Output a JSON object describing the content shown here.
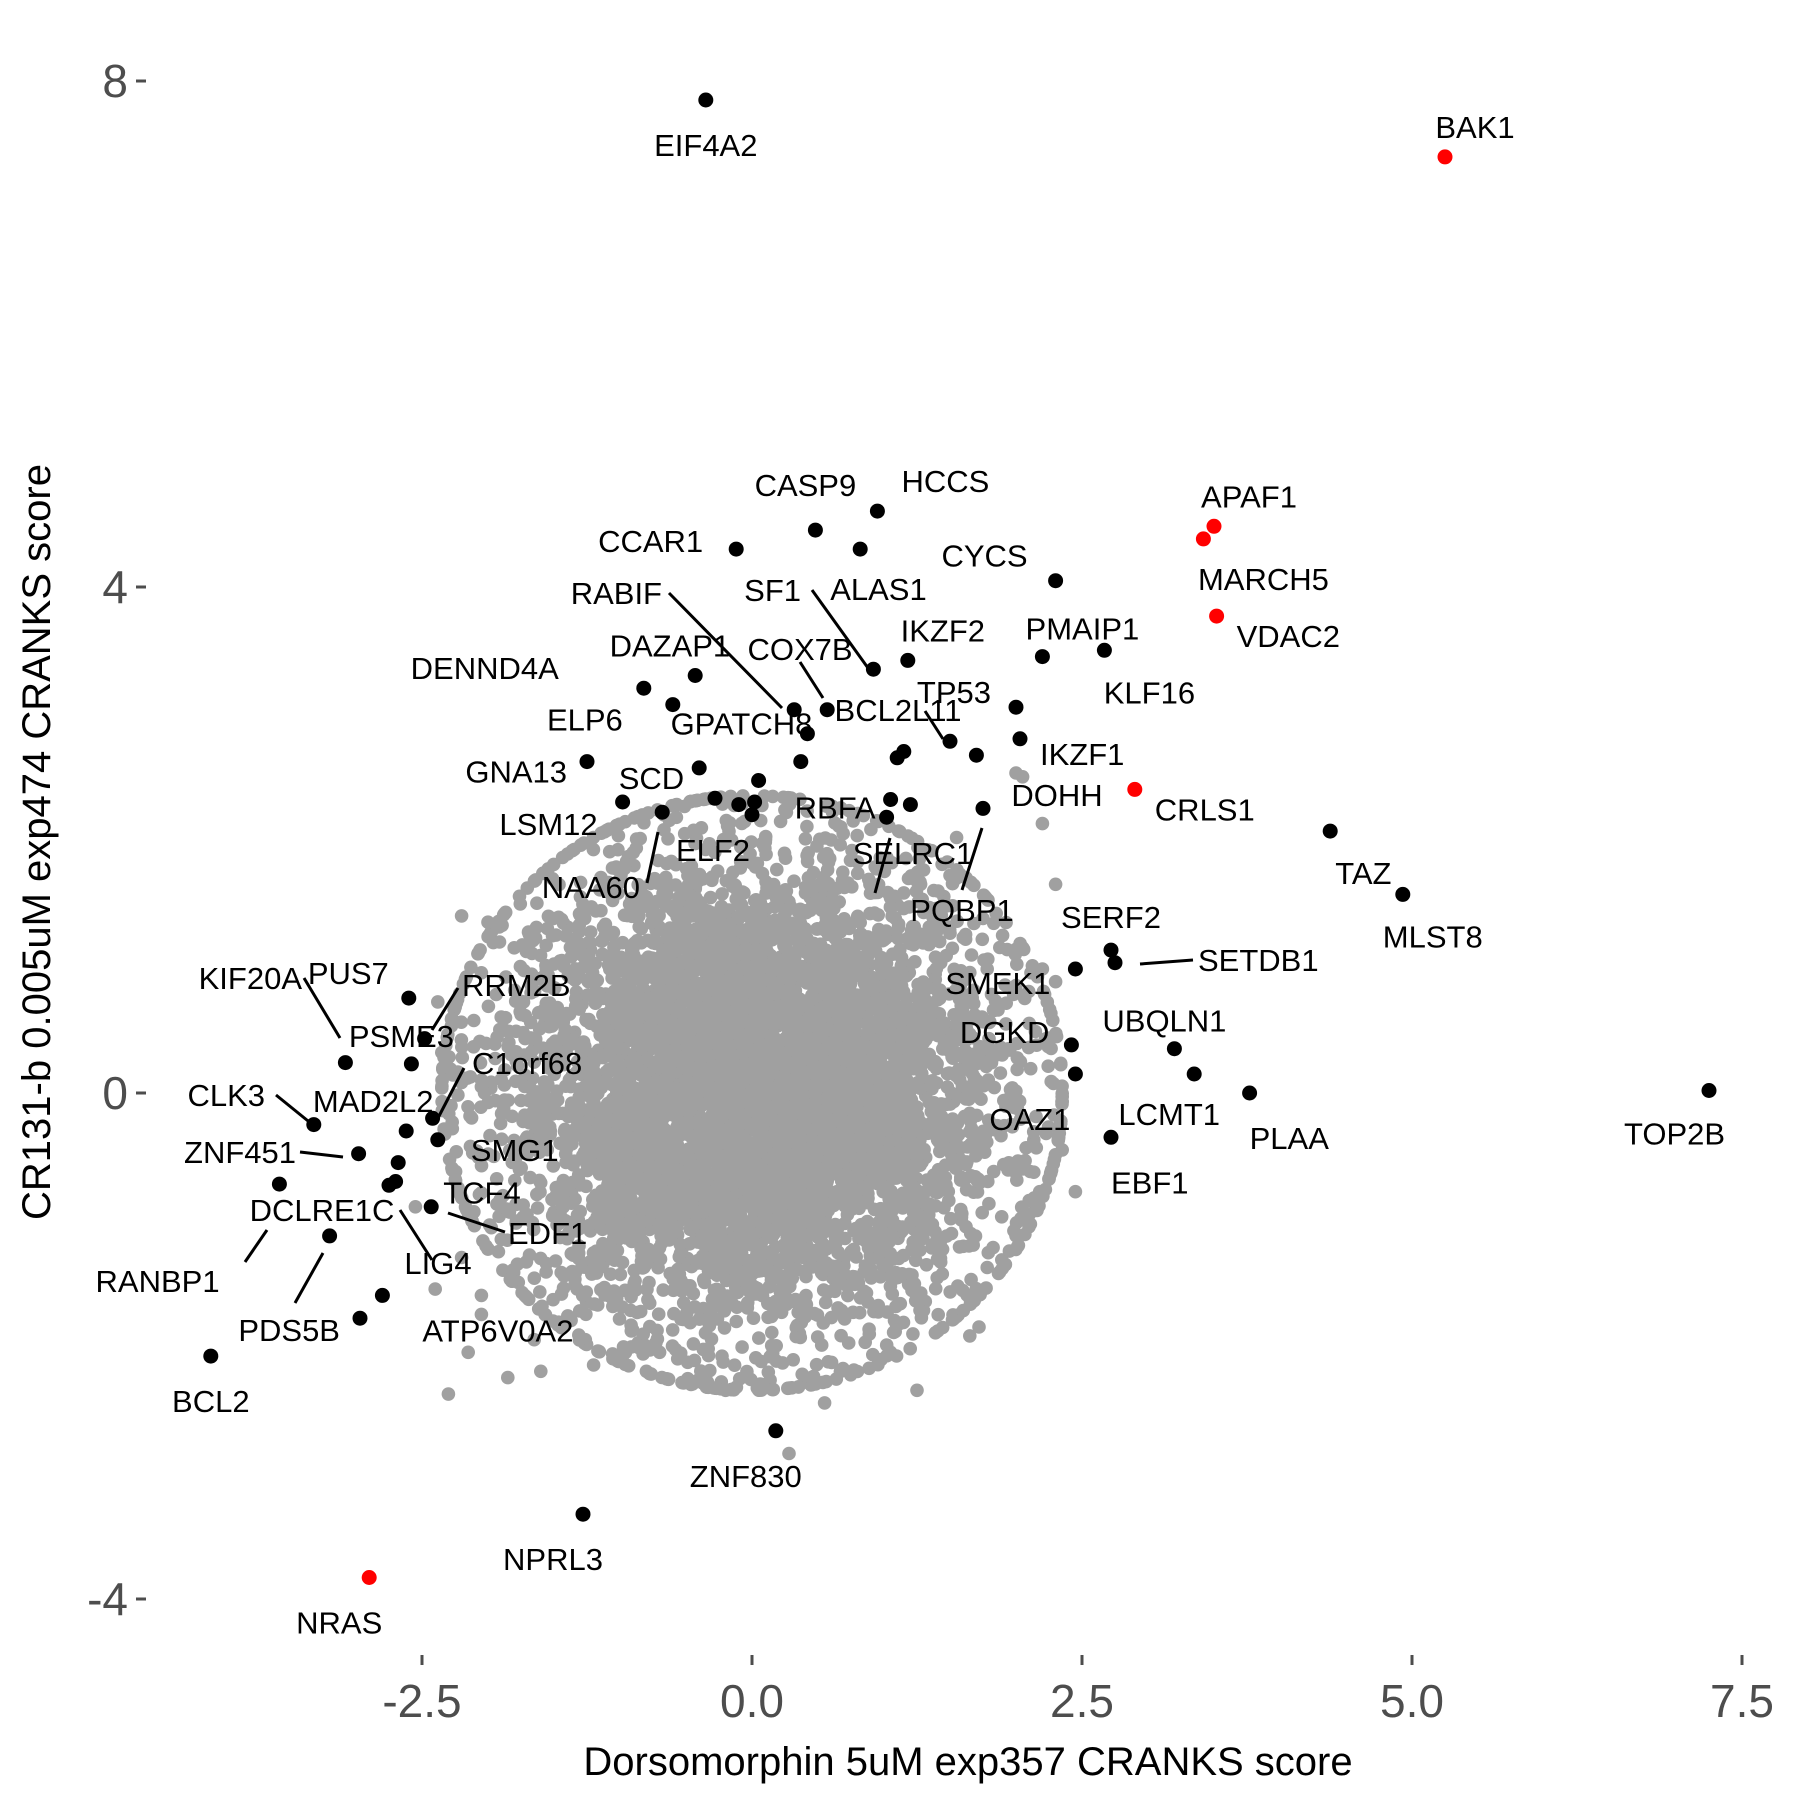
{
  "chart_data": {
    "type": "scatter",
    "title": "",
    "xlabel": "Dorsomorphin 5uM exp357 CRANKS score",
    "ylabel": "CR131-b 0.005uM exp474 CRANKS score",
    "xlim": [
      -4.6,
      7.55
    ],
    "ylim": [
      -4.45,
      8.3
    ],
    "xticks": [
      -2.5,
      0.0,
      2.5,
      5.0,
      7.5
    ],
    "xtick_labels": [
      "-2.5",
      "0.0",
      "2.5",
      "5.0",
      "7.5"
    ],
    "yticks": [
      -4,
      0,
      4,
      8
    ],
    "ytick_labels": [
      "-4",
      "0",
      "4",
      "8"
    ],
    "grid": false,
    "legend": "none",
    "colors": {
      "background": "#ffffff",
      "cloud": "#a0a0a0",
      "labeled": "#000000",
      "highlight": "#ff0000"
    },
    "background_cloud": {
      "description_of_distribution": "dense gray cloud of genes centred near origin",
      "center": [
        0.0,
        0.0
      ],
      "spread": [
        0.95,
        0.95
      ],
      "count": 6000
    },
    "labeled_points": [
      {
        "gene": "EIF4A2",
        "x": -0.35,
        "y": 7.85,
        "color": "black"
      },
      {
        "gene": "BAK1",
        "x": 5.25,
        "y": 7.4,
        "color": "red"
      },
      {
        "gene": "HCCS",
        "x": 0.95,
        "y": 4.6,
        "color": "black"
      },
      {
        "gene": "CASP9",
        "x": 0.48,
        "y": 4.45,
        "color": "black"
      },
      {
        "gene": "CCAR1",
        "x": -0.12,
        "y": 4.3,
        "color": "black"
      },
      {
        "gene": "ALAS1",
        "x": 0.82,
        "y": 4.3,
        "color": "black"
      },
      {
        "gene": "APAF1",
        "x": 3.5,
        "y": 4.48,
        "color": "red"
      },
      {
        "gene": "MARCH5",
        "x": 3.42,
        "y": 4.38,
        "color": "red"
      },
      {
        "gene": "CYCS",
        "x": 2.3,
        "y": 4.05,
        "color": "black"
      },
      {
        "gene": "VDAC2",
        "x": 3.52,
        "y": 3.77,
        "color": "red"
      },
      {
        "gene": "PMAIP1",
        "x": 2.2,
        "y": 3.45,
        "color": "black"
      },
      {
        "gene": "KLF16",
        "x": 2.67,
        "y": 3.5,
        "color": "black"
      },
      {
        "gene": "IKZF2",
        "x": 1.18,
        "y": 3.42,
        "color": "black"
      },
      {
        "gene": "SF1",
        "x": 0.92,
        "y": 3.35,
        "color": "black"
      },
      {
        "gene": "DAZAP1",
        "x": -0.43,
        "y": 3.3,
        "color": "black"
      },
      {
        "gene": "DENND4A",
        "x": -0.82,
        "y": 3.2,
        "color": "black"
      },
      {
        "gene": "ELP6",
        "x": -0.6,
        "y": 3.07,
        "color": "black"
      },
      {
        "gene": "RABIF",
        "x": 0.32,
        "y": 3.03,
        "color": "black"
      },
      {
        "gene": "COX7B",
        "x": 0.57,
        "y": 3.03,
        "color": "black"
      },
      {
        "gene": "TP53",
        "x": 2.0,
        "y": 3.05,
        "color": "black"
      },
      {
        "gene": "GPATCH8",
        "x": 0.42,
        "y": 2.84,
        "color": "black"
      },
      {
        "gene": "IKZF1",
        "x": 2.03,
        "y": 2.8,
        "color": "black"
      },
      {
        "gene": "BCL2L11",
        "x": 1.5,
        "y": 2.78,
        "color": "black"
      },
      {
        "gene": "BCL2L11_2",
        "x": 1.15,
        "y": 2.7,
        "color": "black"
      },
      {
        "gene": "BCL2L11_3",
        "x": 1.1,
        "y": 2.65,
        "color": "black"
      },
      {
        "gene": "DOHH",
        "x": 1.7,
        "y": 2.67,
        "color": "black"
      },
      {
        "gene": "GNA13",
        "x": -1.25,
        "y": 2.62,
        "color": "black"
      },
      {
        "gene": "SCD",
        "x": -0.4,
        "y": 2.57,
        "color": "black"
      },
      {
        "gene": "GPATCH8_2",
        "x": 0.37,
        "y": 2.62,
        "color": "black"
      },
      {
        "gene": "SCD_2",
        "x": 0.05,
        "y": 2.47,
        "color": "black"
      },
      {
        "gene": "CRLS1",
        "x": 2.9,
        "y": 2.4,
        "color": "red"
      },
      {
        "gene": "LSM12",
        "x": -0.98,
        "y": 2.3,
        "color": "black"
      },
      {
        "gene": "RBFA",
        "x": 1.05,
        "y": 2.32,
        "color": "black"
      },
      {
        "gene": "RBFA_2",
        "x": 1.2,
        "y": 2.28,
        "color": "black"
      },
      {
        "gene": "SCD_3",
        "x": -0.28,
        "y": 2.33,
        "color": "black"
      },
      {
        "gene": "SCD_4",
        "x": -0.1,
        "y": 2.28,
        "color": "black"
      },
      {
        "gene": "SCD_5",
        "x": 0.02,
        "y": 2.3,
        "color": "black"
      },
      {
        "gene": "NAA60",
        "x": -0.68,
        "y": 2.22,
        "color": "black"
      },
      {
        "gene": "ELF2",
        "x": 0.0,
        "y": 2.2,
        "color": "black"
      },
      {
        "gene": "SELRC1",
        "x": 1.02,
        "y": 2.18,
        "color": "black"
      },
      {
        "gene": "PQBP1",
        "x": 1.75,
        "y": 2.25,
        "color": "black"
      },
      {
        "gene": "TAZ",
        "x": 4.38,
        "y": 2.07,
        "color": "black"
      },
      {
        "gene": "MLST8",
        "x": 4.93,
        "y": 1.57,
        "color": "black"
      },
      {
        "gene": "SERF2",
        "x": 2.72,
        "y": 1.13,
        "color": "black"
      },
      {
        "gene": "SETDB1",
        "x": 2.75,
        "y": 1.03,
        "color": "black"
      },
      {
        "gene": "SMEK1",
        "x": 2.45,
        "y": 0.98,
        "color": "black"
      },
      {
        "gene": "PUS7",
        "x": -2.6,
        "y": 0.75,
        "color": "black"
      },
      {
        "gene": "RRM2B",
        "x": -2.48,
        "y": 0.43,
        "color": "black"
      },
      {
        "gene": "UBQLN1",
        "x": 3.2,
        "y": 0.35,
        "color": "black"
      },
      {
        "gene": "DGKD",
        "x": 2.42,
        "y": 0.38,
        "color": "black"
      },
      {
        "gene": "KIF20A",
        "x": -3.08,
        "y": 0.24,
        "color": "black"
      },
      {
        "gene": "PSME3",
        "x": -2.58,
        "y": 0.23,
        "color": "black"
      },
      {
        "gene": "LCMT1",
        "x": 3.35,
        "y": 0.15,
        "color": "black"
      },
      {
        "gene": "OAZ1",
        "x": 2.45,
        "y": 0.15,
        "color": "black"
      },
      {
        "gene": "PLAA",
        "x": 3.77,
        "y": 0.0,
        "color": "black"
      },
      {
        "gene": "TOP2B",
        "x": 7.25,
        "y": 0.02,
        "color": "black"
      },
      {
        "gene": "C1orf68",
        "x": -2.42,
        "y": -0.2,
        "color": "black"
      },
      {
        "gene": "CLK3",
        "x": -3.32,
        "y": -0.25,
        "color": "black"
      },
      {
        "gene": "MAD2L2",
        "x": -2.62,
        "y": -0.3,
        "color": "black"
      },
      {
        "gene": "SMG1",
        "x": -2.38,
        "y": -0.37,
        "color": "black"
      },
      {
        "gene": "EBF1",
        "x": 2.72,
        "y": -0.35,
        "color": "black"
      },
      {
        "gene": "ZNF451",
        "x": -2.98,
        "y": -0.48,
        "color": "black"
      },
      {
        "gene": "TCF4",
        "x": -2.68,
        "y": -0.55,
        "color": "black"
      },
      {
        "gene": "LIG4",
        "x": -2.7,
        "y": -0.7,
        "color": "black"
      },
      {
        "gene": "LIG4_2",
        "x": -2.75,
        "y": -0.73,
        "color": "black"
      },
      {
        "gene": "DCLRE1C",
        "x": -3.58,
        "y": -0.72,
        "color": "black"
      },
      {
        "gene": "EDF1",
        "x": -2.43,
        "y": -0.9,
        "color": "black"
      },
      {
        "gene": "RANBP1",
        "x": -3.2,
        "y": -1.13,
        "color": "black"
      },
      {
        "gene": "ATP6V0A2",
        "x": -2.8,
        "y": -1.6,
        "color": "black"
      },
      {
        "gene": "PDS5B",
        "x": -2.97,
        "y": -1.78,
        "color": "black"
      },
      {
        "gene": "BCL2",
        "x": -4.1,
        "y": -2.08,
        "color": "black"
      },
      {
        "gene": "ZNF830",
        "x": 0.18,
        "y": -2.67,
        "color": "black"
      },
      {
        "gene": "NPRL3",
        "x": -1.28,
        "y": -3.33,
        "color": "black"
      },
      {
        "gene": "NRAS",
        "x": -2.9,
        "y": -3.83,
        "color": "red"
      }
    ],
    "gray_outliers": [
      [
        -2.2,
        1.4
      ],
      [
        -2.0,
        1.35
      ],
      [
        -1.55,
        1.3
      ],
      [
        -2.05,
        0.95
      ],
      [
        -2.38,
        0.72
      ],
      [
        -1.9,
        0.6
      ],
      [
        -2.35,
        0.32
      ],
      [
        -2.05,
        0.05
      ],
      [
        -2.28,
        -0.1
      ],
      [
        -2.55,
        -0.9
      ],
      [
        -2.2,
        -1.3
      ],
      [
        -2.4,
        -1.55
      ],
      [
        -2.05,
        -1.75
      ],
      [
        -1.65,
        -1.95
      ],
      [
        -2.15,
        -2.05
      ],
      [
        -2.3,
        -2.38
      ],
      [
        -1.6,
        -2.2
      ],
      [
        -1.2,
        -2.15
      ],
      [
        -0.8,
        -2.2
      ],
      [
        -0.7,
        -2.05
      ],
      [
        -0.45,
        -2.3
      ],
      [
        -0.2,
        -2.35
      ],
      [
        0.45,
        -2.25
      ],
      [
        0.55,
        -2.45
      ],
      [
        0.28,
        -2.85
      ],
      [
        1.05,
        -2.05
      ],
      [
        1.25,
        -2.35
      ],
      [
        1.65,
        -1.92
      ],
      [
        1.72,
        -1.85
      ],
      [
        1.95,
        -1.25
      ],
      [
        2.1,
        -0.85
      ],
      [
        2.05,
        -0.6
      ],
      [
        2.35,
        -0.45
      ],
      [
        2.45,
        -0.78
      ],
      [
        2.3,
        0.88
      ],
      [
        2.2,
        0.98
      ],
      [
        2.3,
        1.65
      ],
      [
        2.0,
        2.53
      ],
      [
        2.2,
        2.13
      ],
      [
        2.05,
        2.5
      ],
      [
        1.55,
        2.02
      ],
      [
        1.5,
        1.72
      ],
      [
        1.85,
        1.42
      ],
      [
        2.1,
        0.55
      ],
      [
        1.85,
        0.3
      ],
      [
        -0.8,
        1.55
      ],
      [
        -1.3,
        1.55
      ],
      [
        -0.9,
        1.9
      ],
      [
        0.6,
        2.0
      ],
      [
        -2.05,
        -1.6
      ],
      [
        -1.85,
        -2.25
      ]
    ]
  }
}
